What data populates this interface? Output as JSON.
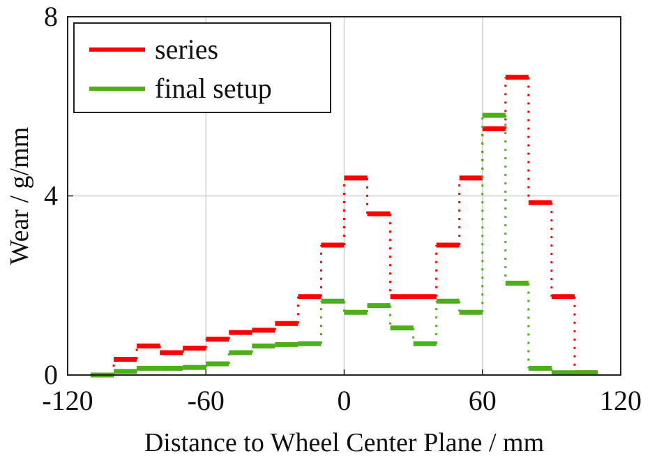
{
  "chart_data": {
    "type": "line",
    "step": true,
    "xlabel": "Distance to Wheel Center Plane / mm",
    "ylabel": "Wear / g/mm",
    "xlim": [
      -120,
      120
    ],
    "ylim": [
      0,
      8
    ],
    "xticks": [
      -120,
      -60,
      0,
      60,
      120
    ],
    "yticks": [
      0,
      4,
      8
    ],
    "xtick_labels": [
      "-120",
      "-60",
      "0",
      "60",
      "120"
    ],
    "ytick_labels": [
      "0",
      "4",
      "8"
    ],
    "grid": true,
    "legend_position": "top-left",
    "bin_edges": [
      -110,
      -100,
      -90,
      -80,
      -70,
      -60,
      -50,
      -40,
      -30,
      -20,
      -10,
      0,
      10,
      20,
      30,
      40,
      50,
      60,
      70,
      80,
      90,
      100,
      110
    ],
    "series": [
      {
        "name": "series",
        "color": "#ff0000",
        "values": [
          0.0,
          0.35,
          0.65,
          0.5,
          0.6,
          0.8,
          0.95,
          1.0,
          1.15,
          1.75,
          2.9,
          4.4,
          3.6,
          1.75,
          1.75,
          2.9,
          4.4,
          5.5,
          6.65,
          3.85,
          1.75,
          0.05
        ]
      },
      {
        "name": "final setup",
        "color": "#4caf1a",
        "values": [
          0.0,
          0.08,
          0.15,
          0.15,
          0.17,
          0.25,
          0.5,
          0.65,
          0.68,
          0.7,
          1.65,
          1.4,
          1.55,
          1.05,
          0.7,
          1.65,
          1.4,
          5.8,
          2.05,
          0.15,
          0.05,
          0.05
        ]
      }
    ]
  }
}
